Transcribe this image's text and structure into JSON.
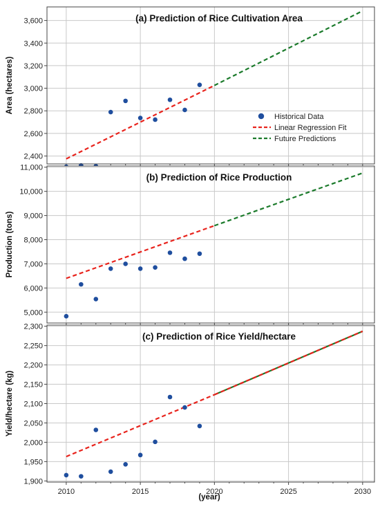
{
  "colors": {
    "points": "#1f4e9e",
    "regression": "#e8231c",
    "prediction": "#1a7a2a",
    "grid": "#c8c8c8",
    "frame": "#444444"
  },
  "xlabel": "(year)",
  "legend": {
    "placement": "right-middle of panel (a)",
    "items": [
      {
        "label": "Historical Data",
        "style": "point"
      },
      {
        "label": "Linear Regression Fit",
        "style": "red-dashed"
      },
      {
        "label": "Future Predictions",
        "style": "green-dashed"
      }
    ]
  },
  "chart_data": [
    {
      "type": "scatter",
      "title": "(a) Prediction of Rice Cultivation Area",
      "ylabel": "Area (hectares)",
      "xlim": [
        2008.7,
        2030.8
      ],
      "ylim": [
        2330,
        3720
      ],
      "xticks": [
        "2010",
        "2015",
        "2020",
        "2025",
        "2030"
      ],
      "yticks": [
        "2,400",
        "2,600",
        "2,800",
        "3,000",
        "3,200",
        "3,400",
        "3,600"
      ],
      "yticks_values": [
        2400,
        2600,
        2800,
        3000,
        3200,
        3400,
        3600
      ],
      "grid": true,
      "series": [
        {
          "name": "Historical Data",
          "x": [
            2010,
            2011,
            2012,
            2013,
            2014,
            2015,
            2016,
            2017,
            2018,
            2019
          ],
          "y": [
            2305,
            2317,
            2310,
            2789,
            2888,
            2737,
            2722,
            2898,
            2808,
            3030
          ]
        },
        {
          "name": "Linear Regression Fit",
          "x": [
            2010,
            2020
          ],
          "y": [
            2375,
            3025
          ],
          "dash": "red"
        },
        {
          "name": "Future Predictions",
          "x": [
            2020,
            2030
          ],
          "y": [
            3025,
            3685
          ],
          "dash": "green"
        }
      ]
    },
    {
      "type": "scatter",
      "title": "(b) Prediction of Rice Production",
      "ylabel": "Production (tons)",
      "xlim": [
        2008.7,
        2030.8
      ],
      "ylim": [
        4550,
        11050
      ],
      "xticks": [
        "2010",
        "2015",
        "2020",
        "2025",
        "2030"
      ],
      "yticks": [
        "5,000",
        "6,000",
        "7,000",
        "8,000",
        "9,000",
        "10,000",
        "11,000"
      ],
      "yticks_values": [
        5000,
        6000,
        7000,
        8000,
        9000,
        10000,
        11000
      ],
      "grid": true,
      "series": [
        {
          "name": "Historical Data",
          "x": [
            2010,
            2011,
            2012,
            2013,
            2014,
            2015,
            2016,
            2017,
            2018,
            2019
          ],
          "y": [
            4830,
            6150,
            5540,
            6800,
            7000,
            6800,
            6850,
            7460,
            7210,
            7420
          ]
        },
        {
          "name": "Linear Regression Fit",
          "x": [
            2010,
            2020
          ],
          "y": [
            6400,
            8580
          ],
          "dash": "red"
        },
        {
          "name": "Future Predictions",
          "x": [
            2020,
            2030
          ],
          "y": [
            8580,
            10760
          ],
          "dash": "green"
        }
      ]
    },
    {
      "type": "scatter",
      "title": "(c) Prediction of Rice Yield/hectare",
      "ylabel": "Yield/hectare (kg)",
      "xlim": [
        2008.7,
        2030.8
      ],
      "ylim": [
        1897,
        2303
      ],
      "xticks": [
        "2010",
        "2015",
        "2020",
        "2025",
        "2030"
      ],
      "yticks": [
        "1,900",
        "1,950",
        "2,000",
        "2,050",
        "2,100",
        "2,150",
        "2,200",
        "2,250",
        "2,300"
      ],
      "yticks_values": [
        1900,
        1950,
        2000,
        2050,
        2100,
        2150,
        2200,
        2250,
        2300
      ],
      "grid": true,
      "series": [
        {
          "name": "Historical Data",
          "x": [
            2010,
            2011,
            2012,
            2013,
            2014,
            2015,
            2016,
            2017,
            2018,
            2019
          ],
          "y": [
            1915,
            1912,
            2032,
            1924,
            1943,
            1967,
            2001,
            2117,
            2090,
            2042
          ]
        },
        {
          "name": "Linear Regression Fit",
          "x": [
            2010,
            2020
          ],
          "y": [
            1963,
            2123
          ],
          "dash": "red"
        },
        {
          "name": "Future Predictions",
          "x": [
            2020,
            2030
          ],
          "y": [
            2123,
            2287
          ],
          "dash": "overlay"
        }
      ]
    }
  ]
}
